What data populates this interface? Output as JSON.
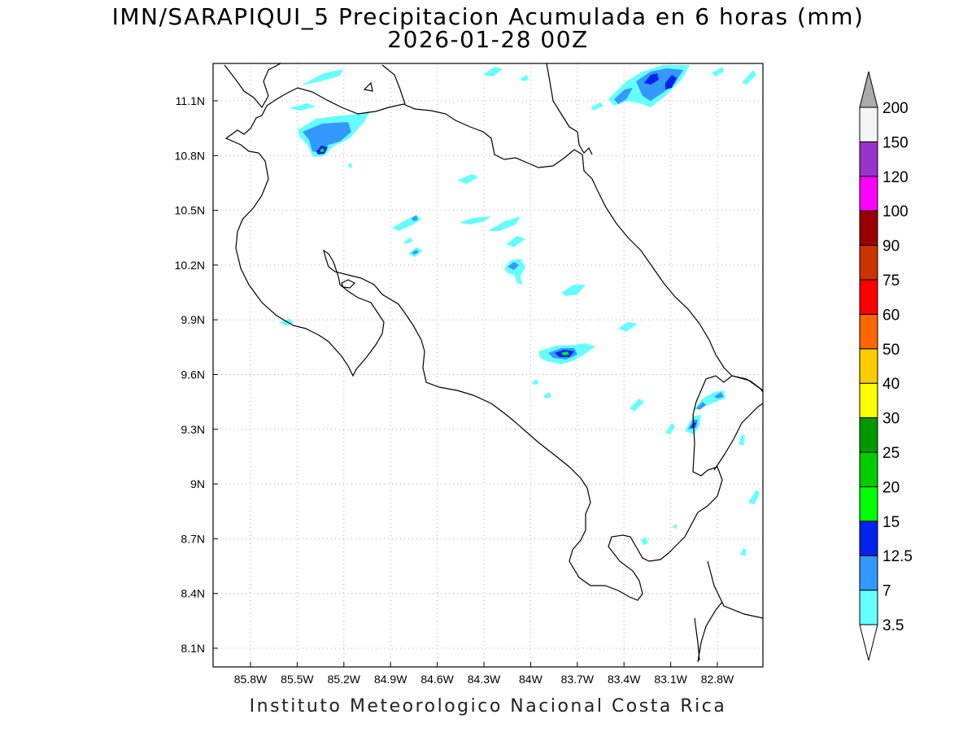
{
  "title_line1": "IMN/SARAPIQUI_5 Precipitacion Acumulada en 6 horas (mm)",
  "title_line2": "2026-01-28 00Z",
  "footer": "Instituto Meteorologico Nacional Costa Rica",
  "axes": {
    "x_ticks": [
      "85.8W",
      "85.5W",
      "85.2W",
      "84.9W",
      "84.6W",
      "84.3W",
      "84W",
      "83.7W",
      "83.4W",
      "83.1W",
      "82.8W"
    ],
    "y_ticks": [
      "11.1N",
      "10.8N",
      "10.5N",
      "10.2N",
      "9.9N",
      "9.6N",
      "9.3N",
      "9N",
      "8.7N",
      "8.4N",
      "8.1N"
    ],
    "grid": "dotted"
  },
  "colorbar": {
    "labels": [
      "3.5",
      "7",
      "12.5",
      "15",
      "20",
      "25",
      "30",
      "40",
      "50",
      "60",
      "75",
      "90",
      "100",
      "120",
      "150",
      "200"
    ],
    "colors": [
      "#66ffff",
      "#3399ff",
      "#0022ee",
      "#00ff00",
      "#00cc00",
      "#009900",
      "#ffff00",
      "#ffcc00",
      "#ff6600",
      "#ff0000",
      "#cc3300",
      "#990000",
      "#ff00ff",
      "#9933cc",
      "#f5f5f5"
    ],
    "under_color": "#ffffff",
    "over_color": "#aaaaaa"
  }
}
